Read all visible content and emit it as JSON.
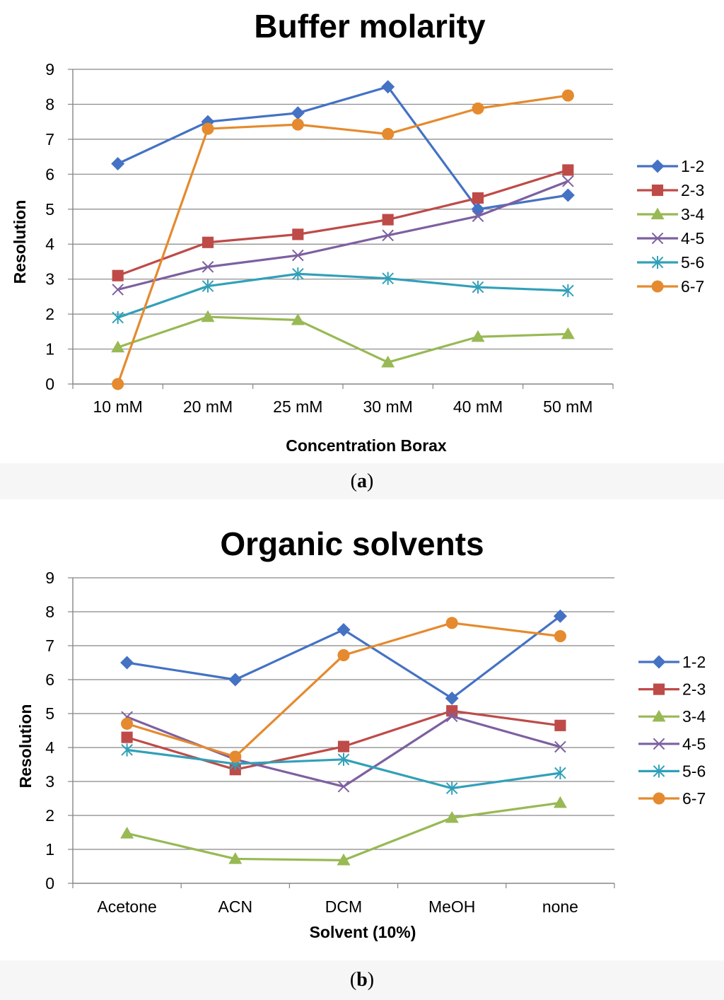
{
  "captions": {
    "a_letter": "a",
    "b_letter": "b"
  },
  "chart_data": [
    {
      "type": "line",
      "title": "Buffer molarity",
      "xlabel": "Concentration Borax",
      "ylabel": "Resolution",
      "ylim": [
        0,
        9
      ],
      "yticks": [
        "0",
        "1",
        "2",
        "3",
        "4",
        "5",
        "6",
        "7",
        "8",
        "9"
      ],
      "grid": true,
      "legend": "right",
      "categories": [
        "10 mM",
        "20 mM",
        "25 mM",
        "30 mM",
        "40 mM",
        "50 mM"
      ],
      "series": [
        {
          "name": "1-2",
          "color": "#4472c4",
          "marker": "diamond",
          "values": [
            6.3,
            7.5,
            7.75,
            8.5,
            5.0,
            5.4
          ]
        },
        {
          "name": "2-3",
          "color": "#be4b48",
          "marker": "square",
          "values": [
            3.1,
            4.05,
            4.28,
            4.7,
            5.32,
            6.12
          ]
        },
        {
          "name": "3-4",
          "color": "#98b954",
          "marker": "triangle",
          "values": [
            1.05,
            1.92,
            1.83,
            0.62,
            1.35,
            1.43
          ]
        },
        {
          "name": "4-5",
          "color": "#7d60a0",
          "marker": "x",
          "values": [
            2.7,
            3.35,
            3.68,
            4.25,
            4.8,
            5.8
          ]
        },
        {
          "name": "5-6",
          "color": "#31a0b9",
          "marker": "asterisk",
          "values": [
            1.9,
            2.8,
            3.15,
            3.02,
            2.77,
            2.67
          ]
        },
        {
          "name": "6-7",
          "color": "#e58a2e",
          "marker": "circle",
          "values": [
            0.0,
            7.3,
            7.42,
            7.15,
            7.88,
            8.25
          ]
        }
      ]
    },
    {
      "type": "line",
      "title": "Organic solvents",
      "xlabel": "Solvent (10%)",
      "ylabel": "Resolution",
      "ylim": [
        0,
        9
      ],
      "yticks": [
        "0",
        "1",
        "2",
        "3",
        "4",
        "5",
        "6",
        "7",
        "8",
        "9"
      ],
      "grid": true,
      "legend": "right",
      "categories": [
        "Acetone",
        "ACN",
        "DCM",
        "MeOH",
        "none"
      ],
      "series": [
        {
          "name": "1-2",
          "color": "#4472c4",
          "marker": "diamond",
          "values": [
            6.5,
            6.0,
            7.47,
            5.45,
            7.87
          ]
        },
        {
          "name": "2-3",
          "color": "#be4b48",
          "marker": "square",
          "values": [
            4.3,
            3.35,
            4.03,
            5.08,
            4.65
          ]
        },
        {
          "name": "3-4",
          "color": "#98b954",
          "marker": "triangle",
          "values": [
            1.47,
            0.72,
            0.68,
            1.93,
            2.37
          ]
        },
        {
          "name": "4-5",
          "color": "#7d60a0",
          "marker": "x",
          "values": [
            4.9,
            3.65,
            2.85,
            4.92,
            4.02
          ]
        },
        {
          "name": "5-6",
          "color": "#31a0b9",
          "marker": "asterisk",
          "values": [
            3.93,
            3.52,
            3.65,
            2.8,
            3.25
          ]
        },
        {
          "name": "6-7",
          "color": "#e58a2e",
          "marker": "circle",
          "values": [
            4.7,
            3.73,
            6.72,
            7.67,
            7.28
          ]
        }
      ]
    }
  ]
}
